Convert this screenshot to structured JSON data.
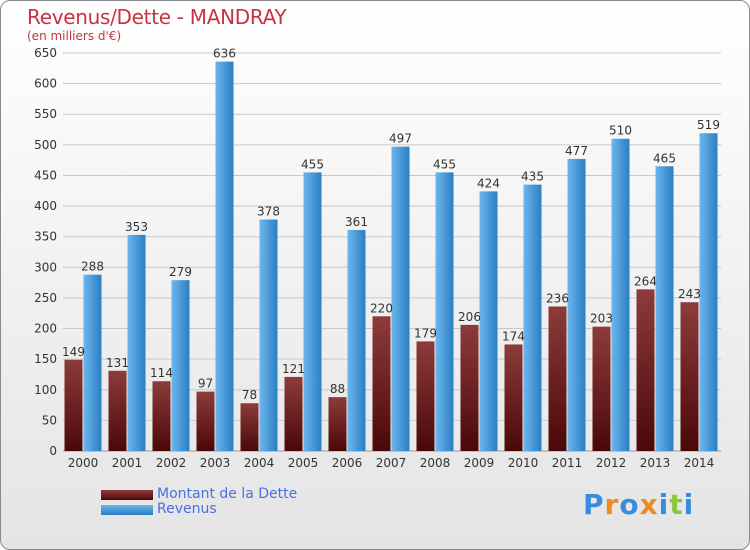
{
  "header": {
    "title": "Revenus/Dette - MANDRAY",
    "subtitle": "(en milliers d'€)"
  },
  "colors": {
    "dette_top": "#8e3b3b",
    "dette_bottom": "#4a0808",
    "revenus_top": "#6cb6ee",
    "revenus_bottom": "#2a7fc4"
  },
  "legend": {
    "dette_label": "Montant de la Dette",
    "revenus_label": "Revenus"
  },
  "logo": {
    "letters": [
      "P",
      "r",
      "o",
      "x",
      "i",
      "t",
      "i"
    ],
    "colors": [
      "#3a8be0",
      "#f08a1c",
      "#3a8be0",
      "#f08a1c",
      "#3a8be0",
      "#8cc63f",
      "#3a8be0"
    ]
  },
  "chart_data": {
    "type": "bar",
    "title": "Revenus/Dette - MANDRAY",
    "subtitle": "(en milliers d'€)",
    "categories": [
      "2000",
      "2001",
      "2002",
      "2003",
      "2004",
      "2005",
      "2006",
      "2007",
      "2008",
      "2009",
      "2010",
      "2011",
      "2012",
      "2013",
      "2014"
    ],
    "series": [
      {
        "name": "Montant de la Dette",
        "values": [
          149,
          131,
          114,
          97,
          78,
          121,
          88,
          220,
          179,
          206,
          174,
          236,
          203,
          264,
          243
        ]
      },
      {
        "name": "Revenus",
        "values": [
          288,
          353,
          279,
          636,
          378,
          455,
          361,
          497,
          455,
          424,
          435,
          477,
          510,
          465,
          519
        ]
      }
    ],
    "ylim": [
      0,
      650
    ],
    "yticks": [
      0,
      50,
      100,
      150,
      200,
      250,
      300,
      350,
      400,
      450,
      500,
      550,
      600,
      650
    ],
    "grid": true,
    "legend_position": "bottom-left"
  }
}
